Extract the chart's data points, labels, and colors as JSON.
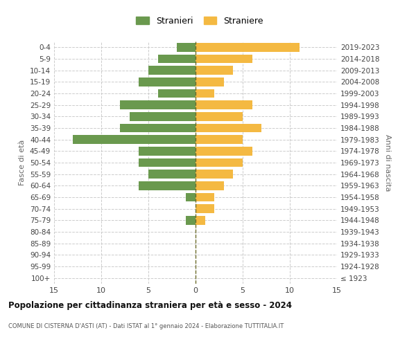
{
  "age_groups": [
    "100+",
    "95-99",
    "90-94",
    "85-89",
    "80-84",
    "75-79",
    "70-74",
    "65-69",
    "60-64",
    "55-59",
    "50-54",
    "45-49",
    "40-44",
    "35-39",
    "30-34",
    "25-29",
    "20-24",
    "15-19",
    "10-14",
    "5-9",
    "0-4"
  ],
  "birth_years": [
    "≤ 1923",
    "1924-1928",
    "1929-1933",
    "1934-1938",
    "1939-1943",
    "1944-1948",
    "1949-1953",
    "1954-1958",
    "1959-1963",
    "1964-1968",
    "1969-1973",
    "1974-1978",
    "1979-1983",
    "1984-1988",
    "1989-1993",
    "1994-1998",
    "1999-2003",
    "2004-2008",
    "2009-2013",
    "2014-2018",
    "2019-2023"
  ],
  "males": [
    0,
    0,
    0,
    0,
    0,
    1,
    0,
    1,
    6,
    5,
    6,
    6,
    13,
    8,
    7,
    8,
    4,
    6,
    5,
    4,
    2
  ],
  "females": [
    0,
    0,
    0,
    0,
    0,
    1,
    2,
    2,
    3,
    4,
    5,
    6,
    5,
    7,
    5,
    6,
    2,
    3,
    4,
    6,
    11
  ],
  "male_color": "#6a994e",
  "female_color": "#f4b942",
  "grid_color": "#cccccc",
  "center_line_color": "#6b6b2a",
  "xlim": 15,
  "title": "Popolazione per cittadinanza straniera per età e sesso - 2024",
  "subtitle": "COMUNE DI CISTERNA D'ASTI (AT) - Dati ISTAT al 1° gennaio 2024 - Elaborazione TUTTITALIA.IT",
  "ylabel_left": "Fasce di età",
  "ylabel_right": "Anni di nascita",
  "legend_male": "Stranieri",
  "legend_female": "Straniere",
  "background_color": "#ffffff",
  "bar_height": 0.75
}
